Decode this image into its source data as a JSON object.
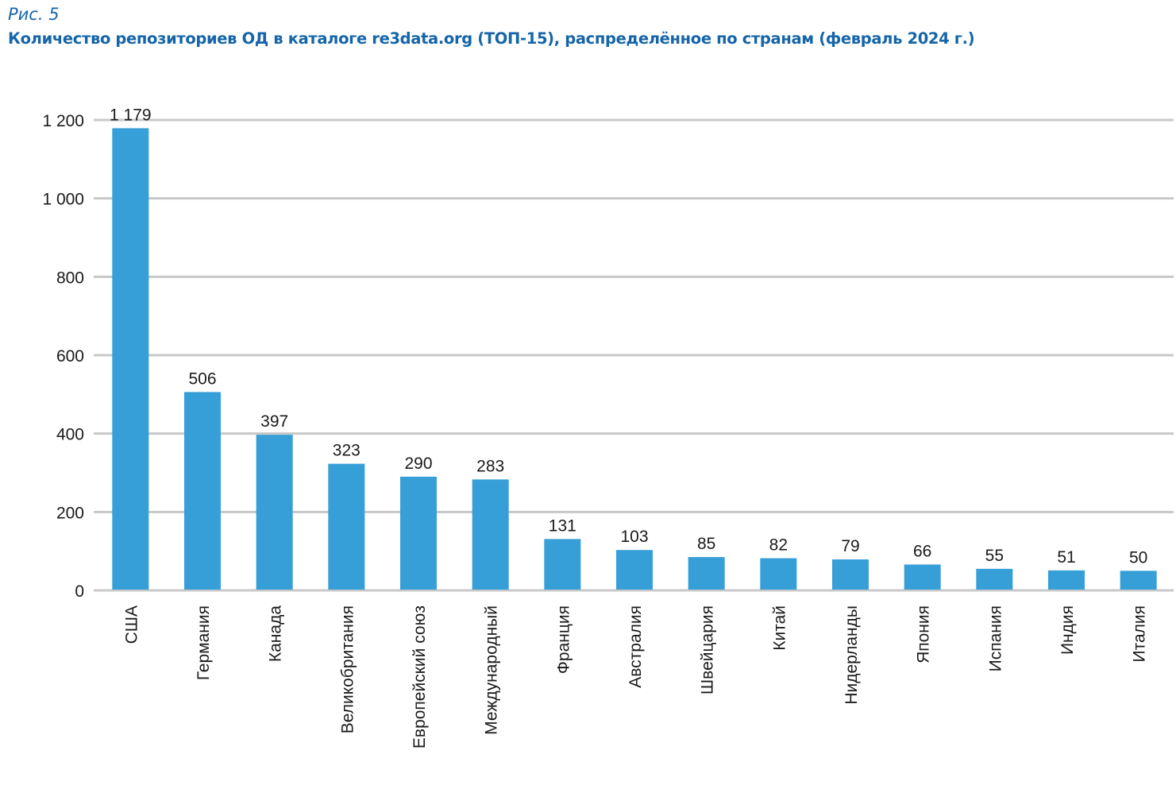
{
  "figure": {
    "label": "Рис. 5",
    "title": "Количество репозиториев ОД в каталоге re3data.org (ТОП-15), распределённое по странам (февраль 2024 г.)"
  },
  "colors": {
    "bar": "#379fd8",
    "grid": "#c8c8c8",
    "title": "#1565a8"
  },
  "chart_data": {
    "type": "bar",
    "title": "Количество репозиториев ОД в каталоге re3data.org (ТОП-15), распределённое по странам (февраль 2024 г.)",
    "xlabel": "",
    "ylabel": "",
    "ylim": [
      0,
      1200
    ],
    "grid": true,
    "legend": "none",
    "yticks": [
      0,
      200,
      400,
      600,
      800,
      1000,
      1200
    ],
    "ytick_labels": [
      "0",
      "200",
      "400",
      "600",
      "800",
      "1 000",
      "1 200"
    ],
    "categories": [
      "США",
      "Германия",
      "Канада",
      "Великобритания",
      "Европейский союз",
      "Международный",
      "Франция",
      "Австралия",
      "Швейцария",
      "Китай",
      "Нидерланды",
      "Япония",
      "Испания",
      "Индия",
      "Италия"
    ],
    "values": [
      1179,
      506,
      397,
      323,
      290,
      283,
      131,
      103,
      85,
      82,
      79,
      66,
      55,
      51,
      50
    ],
    "value_labels": [
      "1 179",
      "506",
      "397",
      "323",
      "290",
      "283",
      "131",
      "103",
      "85",
      "82",
      "79",
      "66",
      "55",
      "51",
      "50"
    ]
  }
}
